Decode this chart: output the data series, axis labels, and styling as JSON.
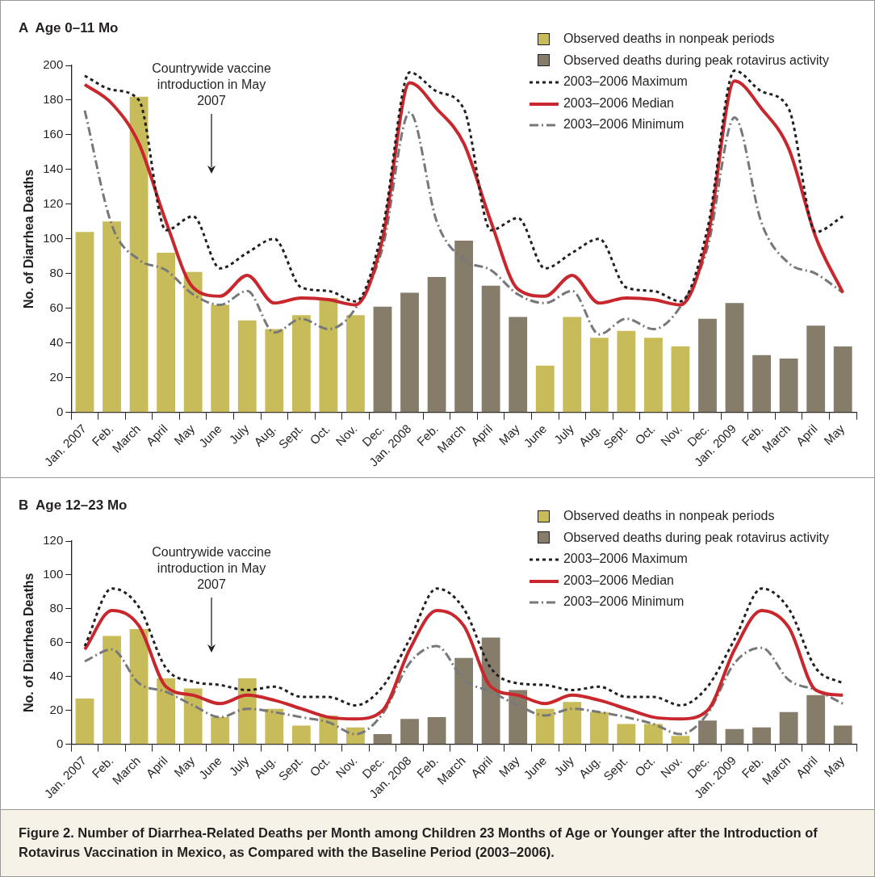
{
  "chart_data": [
    {
      "type": "bar",
      "title": "A  Age 0–11 Mo",
      "ylabel": "No. of Diarrhea Deaths",
      "categories": [
        "Jan. 2007",
        "Feb.",
        "March",
        "April",
        "May",
        "June",
        "July",
        "Aug.",
        "Sept.",
        "Oct.",
        "Nov.",
        "Dec.",
        "Jan. 2008",
        "Feb.",
        "March",
        "April",
        "May",
        "June",
        "July",
        "Aug.",
        "Sept.",
        "Oct.",
        "Nov.",
        "Dec.",
        "Jan. 2009",
        "Feb.",
        "March",
        "April",
        "May"
      ],
      "series": [
        {
          "name": "Observed deaths in nonpeak periods",
          "color": "#c8bb5a",
          "values": [
            104,
            110,
            182,
            92,
            81,
            62,
            53,
            48,
            56,
            66,
            56,
            null,
            null,
            null,
            null,
            null,
            null,
            27,
            55,
            43,
            47,
            43,
            38,
            null,
            null,
            null,
            null,
            null,
            null
          ]
        },
        {
          "name": "Observed deaths during peak rotavirus activity",
          "color": "#857c6a",
          "values": [
            null,
            null,
            null,
            null,
            null,
            null,
            null,
            null,
            null,
            null,
            null,
            61,
            69,
            78,
            99,
            73,
            55,
            null,
            null,
            null,
            null,
            null,
            null,
            54,
            63,
            33,
            31,
            50,
            38
          ]
        },
        {
          "name": "2003–2006 Maximum",
          "type": "line",
          "color": "#231f20",
          "line_style": "dotted",
          "values": [
            194,
            186,
            180,
            105,
            113,
            83,
            92,
            100,
            72,
            70,
            64,
            106,
            196,
            185,
            175,
            105,
            112,
            83,
            92,
            100,
            72,
            70,
            64,
            106,
            197,
            185,
            175,
            104,
            113
          ]
        },
        {
          "name": "2003–2006 Median",
          "type": "line",
          "color": "#c8282d",
          "line_style": "solid",
          "values": [
            189,
            178,
            155,
            110,
            72,
            67,
            79,
            63,
            66,
            65,
            62,
            100,
            190,
            175,
            155,
            110,
            71,
            67,
            79,
            63,
            66,
            65,
            62,
            100,
            191,
            175,
            152,
            101,
            69
          ]
        },
        {
          "name": "2003–2006 Minimum",
          "type": "line",
          "color": "#77787b",
          "line_style": "dashed",
          "values": [
            174,
            108,
            88,
            82,
            68,
            62,
            70,
            46,
            54,
            48,
            60,
            95,
            173,
            110,
            88,
            82,
            68,
            63,
            70,
            45,
            54,
            48,
            61,
            95,
            170,
            109,
            86,
            80,
            69
          ]
        }
      ],
      "ylim": [
        0,
        200
      ],
      "yticks": [
        0,
        20,
        40,
        60,
        80,
        100,
        120,
        140,
        160,
        180,
        200
      ],
      "marker": "none",
      "legend": "top right",
      "annotations": [
        "Countrywide vaccine introduction in May 2007"
      ]
    },
    {
      "type": "bar",
      "title": "B  Age 12–23 Mo",
      "ylabel": "No. of Diarrhea Deaths",
      "categories": [
        "Jan. 2007",
        "Feb.",
        "March",
        "April",
        "May",
        "June",
        "July",
        "Aug.",
        "Sept.",
        "Oct.",
        "Nov.",
        "Dec.",
        "Jan. 2008",
        "Feb.",
        "March",
        "April",
        "May",
        "June",
        "July",
        "Aug.",
        "Sept.",
        "Oct.",
        "Nov.",
        "Dec.",
        "Jan. 2009",
        "Feb.",
        "March",
        "April",
        "May"
      ],
      "series": [
        {
          "name": "Observed deaths in nonpeak periods",
          "color": "#c8bb5a",
          "values": [
            27,
            64,
            68,
            39,
            33,
            16,
            39,
            21,
            11,
            17,
            10,
            null,
            null,
            null,
            null,
            null,
            null,
            21,
            25,
            19,
            12,
            12,
            5,
            null,
            null,
            null,
            null,
            null,
            null
          ]
        },
        {
          "name": "Observed deaths during peak rotavirus activity",
          "color": "#857c6a",
          "values": [
            null,
            null,
            null,
            null,
            null,
            null,
            null,
            null,
            null,
            null,
            null,
            6,
            15,
            16,
            51,
            63,
            32,
            null,
            null,
            null,
            null,
            null,
            null,
            14,
            9,
            10,
            19,
            29,
            11
          ]
        },
        {
          "name": "2003–2006 Maximum",
          "type": "line",
          "color": "#231f20",
          "line_style": "dotted",
          "values": [
            58,
            92,
            81,
            45,
            37,
            35,
            32,
            34,
            28,
            28,
            23,
            34,
            62,
            92,
            80,
            45,
            36,
            35,
            32,
            34,
            28,
            28,
            23,
            34,
            62,
            92,
            80,
            45,
            36
          ]
        },
        {
          "name": "2003–2006 Median",
          "type": "line",
          "color": "#c8282d",
          "line_style": "solid",
          "values": [
            56,
            79,
            70,
            34,
            29,
            24,
            29,
            26,
            21,
            16,
            15,
            20,
            56,
            79,
            70,
            34,
            29,
            24,
            29,
            26,
            21,
            16,
            15,
            20,
            56,
            79,
            69,
            32,
            29
          ]
        },
        {
          "name": "2003–2006 Minimum",
          "type": "line",
          "color": "#77787b",
          "line_style": "dashed",
          "values": [
            49,
            56,
            36,
            31,
            23,
            16,
            21,
            19,
            16,
            13,
            6,
            18,
            48,
            58,
            38,
            31,
            23,
            17,
            21,
            19,
            16,
            12,
            6,
            18,
            48,
            57,
            38,
            32,
            24
          ]
        }
      ],
      "ylim": [
        0,
        120
      ],
      "yticks": [
        0,
        20,
        40,
        60,
        80,
        100,
        120
      ],
      "marker": "none",
      "legend": "top right",
      "annotations": [
        "Countrywide vaccine introduction in May 2007",
        "Figure 2. Number of Diarrhea-Related Deaths per Month among Children 23 Months of Age or Younger after the Introduction of Rotavirus Vaccination in Mexico, as Compared with the Baseline Period (2003–2006)."
      ]
    }
  ]
}
